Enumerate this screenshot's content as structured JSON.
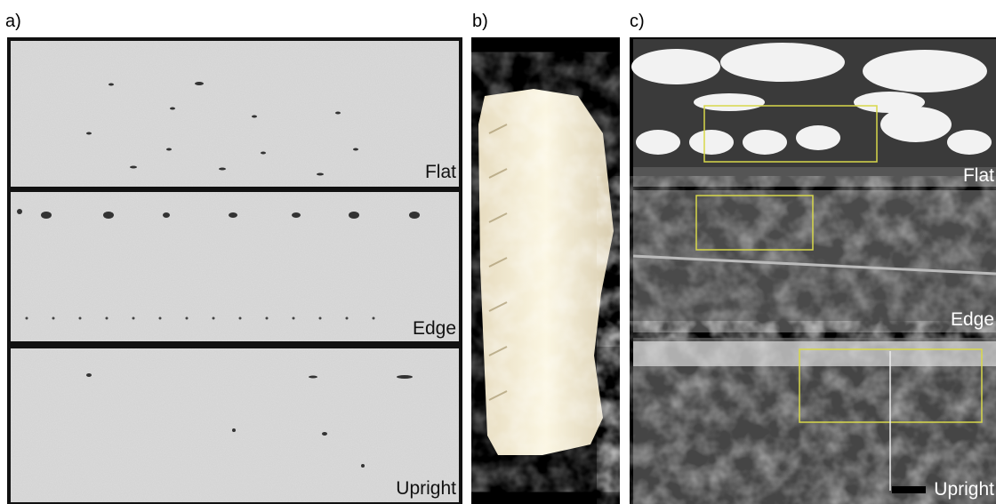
{
  "panels": [
    {
      "label": "a)",
      "images": [
        {
          "caption": "Flat"
        },
        {
          "caption": "Edge"
        },
        {
          "caption": "Upright"
        }
      ]
    },
    {
      "label": "b)"
    },
    {
      "label": "c)",
      "images": [
        {
          "caption": "Flat"
        },
        {
          "caption": "Edge"
        },
        {
          "caption": "Upright"
        }
      ]
    }
  ]
}
